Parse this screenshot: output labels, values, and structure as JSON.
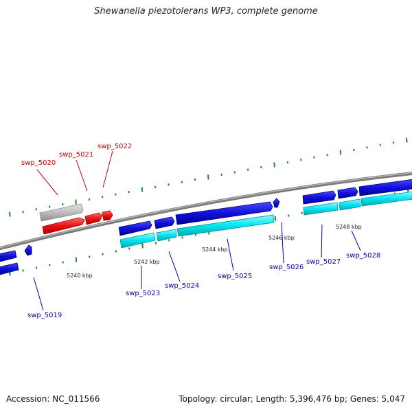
{
  "title": "Shewanella piezotolerans WP3, complete genome",
  "footer": {
    "accession": "Accession: NC_011566",
    "summary": "Topology: circular; Length: 5,396,476 bp; Genes: 5,047"
  },
  "colors": {
    "backbone": "#808080",
    "dots": "#228b22",
    "forward_cds": "#1010dd",
    "forward_rna": "#00e5ee",
    "reverse_cds": "#ee1111",
    "reverse_gene": "#b8b8b8",
    "label_forward": "#0000aa",
    "label_reverse": "#cc0000"
  },
  "scale_labels": [
    "5240 kbp",
    "5242 kbp",
    "5244 kbp",
    "5246 kbp",
    "5248 kbp"
  ],
  "gene_labels": {
    "reverse": [
      "swp_5020",
      "swp_5021",
      "swp_5022"
    ],
    "forward": [
      "swp_5019",
      "swp_5023",
      "swp_5024",
      "swp_5025",
      "swp_5026",
      "swp_5027",
      "swp_5028"
    ]
  }
}
